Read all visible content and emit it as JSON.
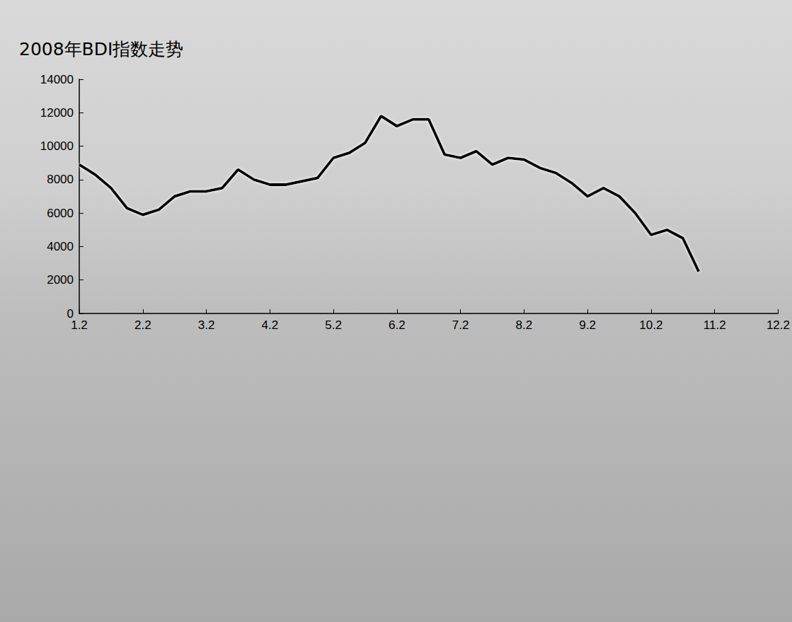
{
  "chart_data": {
    "type": "line",
    "title": "2008年BDI指数走势",
    "categories": [
      "1.2",
      null,
      null,
      null,
      "2.2",
      null,
      null,
      null,
      "3.2",
      null,
      null,
      null,
      "4.2",
      null,
      null,
      null,
      "5.2",
      null,
      null,
      null,
      "6.2",
      null,
      null,
      null,
      "7.2",
      null,
      null,
      null,
      "8.2",
      null,
      null,
      null,
      "9.2",
      null,
      null,
      null,
      "10.2",
      null,
      null,
      null,
      "11.2",
      null,
      null,
      null,
      "12.2"
    ],
    "values": [
      8900,
      8300,
      7500,
      6300,
      5900,
      6200,
      7000,
      7300,
      7300,
      7500,
      8600,
      8000,
      7700,
      7700,
      7900,
      8100,
      9300,
      9600,
      10200,
      11800,
      11200,
      11600,
      11600,
      9500,
      9300,
      9700,
      8900,
      9300,
      9200,
      8700,
      8400,
      7800,
      7000,
      7500,
      7000,
      6000,
      4700,
      5000,
      4500,
      2500,
      null,
      null,
      null,
      null,
      null
    ],
    "color": "#000000",
    "ylim": [
      0,
      14000
    ],
    "yticks": [
      0,
      2000,
      4000,
      6000,
      8000,
      10000,
      12000,
      14000
    ],
    "grid": false
  }
}
